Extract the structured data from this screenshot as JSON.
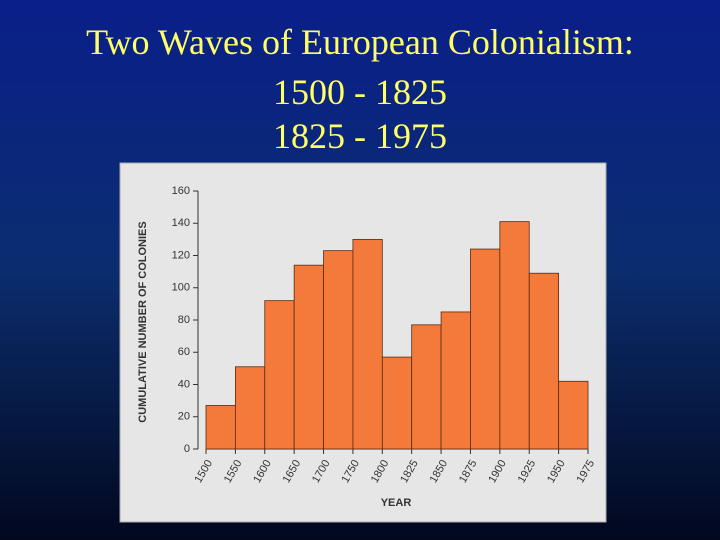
{
  "title_lines": [
    "Two Waves of European Colonialism:",
    "1500 - 1825",
    "1825 - 1975"
  ],
  "chart_data": {
    "type": "histogram",
    "bins": [
      1500,
      1550,
      1600,
      1650,
      1700,
      1750,
      1800,
      1825,
      1850,
      1875,
      1900,
      1925,
      1950,
      1975
    ],
    "values": [
      27,
      51,
      92,
      114,
      123,
      130,
      57,
      77,
      85,
      124,
      141,
      109,
      42
    ],
    "color": "#f47a3c",
    "xlabel": "YEAR",
    "ylabel": "CUMULATIVE NUMBER OF COLONIES",
    "ylim": [
      0,
      160
    ],
    "yticks": [
      0,
      20,
      40,
      60,
      80,
      100,
      120,
      140,
      160
    ]
  }
}
